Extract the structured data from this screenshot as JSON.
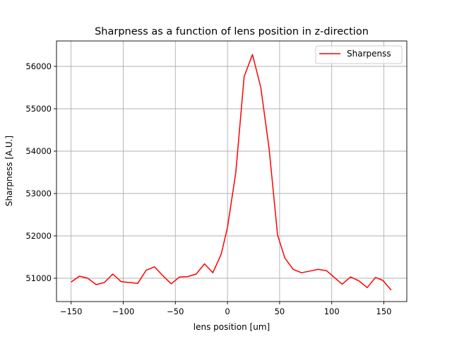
{
  "chart_data": {
    "type": "line",
    "title": "Sharpness as a function of lens position in z-direction",
    "xlabel": "lens position [um]",
    "ylabel": "Sharpness [A.U.]",
    "xlim": [
      -164,
      172
    ],
    "ylim": [
      50450,
      56600
    ],
    "xticks": [
      -150,
      -100,
      -50,
      0,
      50,
      100,
      150
    ],
    "yticks": [
      51000,
      52000,
      53000,
      54000,
      55000,
      56000
    ],
    "grid": true,
    "legend_position": "upper right",
    "series": [
      {
        "name": "Sharpenss",
        "color": "#ff0000",
        "x": [
          -150,
          -142,
          -134,
          -126,
          -118,
          -110,
          -102,
          -86,
          -78,
          -70,
          -62,
          -54,
          -46,
          -38,
          -30,
          -22,
          -14,
          -6,
          0,
          8,
          16,
          24,
          32,
          40,
          48,
          55,
          63,
          71,
          79,
          87,
          95,
          103,
          110,
          118,
          126,
          134,
          142,
          149,
          157
        ],
        "y": [
          50910,
          51050,
          51000,
          50850,
          50900,
          51100,
          50920,
          50880,
          51190,
          51270,
          51060,
          50870,
          51030,
          51040,
          51100,
          51340,
          51130,
          51570,
          52200,
          53500,
          55760,
          56280,
          55500,
          54050,
          52020,
          51480,
          51210,
          51130,
          51170,
          51210,
          51180,
          51010,
          50860,
          51030,
          50940,
          50780,
          51020,
          50950,
          50720
        ]
      }
    ]
  }
}
